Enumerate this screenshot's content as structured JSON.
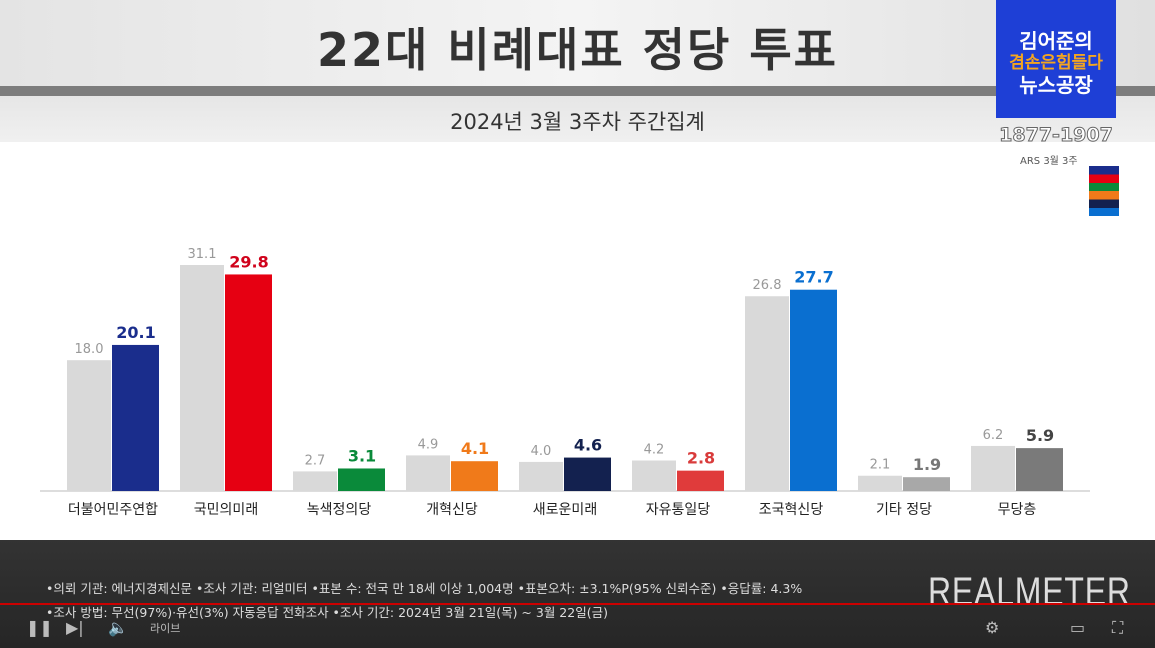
{
  "header": {
    "title": "22대 비례대표 정당 투표",
    "subtitle": "2024년 3월 3주차 주간집계"
  },
  "channel": {
    "logo_line1": "김어준의",
    "logo_line2": "겸손은힘들다",
    "logo_line3": "뉴스공장",
    "phone": "1877-1907",
    "flag_label": "ARS 3월 3주"
  },
  "chart_data": {
    "type": "bar",
    "categories": [
      "더불어민주연합",
      "국민의미래",
      "녹색정의당",
      "개혁신당",
      "새로운미래",
      "자유통일당",
      "조국혁신당",
      "기타 정당",
      "무당층"
    ],
    "series": [
      {
        "values": [
          18.0,
          31.1,
          2.7,
          4.9,
          4.0,
          4.2,
          26.8,
          2.1,
          6.2
        ],
        "color": "#d9d9d9"
      },
      {
        "values": [
          20.1,
          29.8,
          3.1,
          4.1,
          4.6,
          2.8,
          27.7,
          1.9,
          5.9
        ],
        "colors": [
          "#1a2d8c",
          "#e60012",
          "#0a8a3a",
          "#f07a1a",
          "#13214f",
          "#e03b3b",
          "#0a6fd0",
          "#a8a8a8",
          "#7a7a7a"
        ]
      }
    ],
    "label_colors": [
      "#1a2d8c",
      "#d0021b",
      "#0a8a3a",
      "#f07a1a",
      "#13214f",
      "#d93b3b",
      "#0a6fd0",
      "#777777",
      "#444444"
    ],
    "ylim": [
      0,
      31.1
    ],
    "grid": false
  },
  "footer": {
    "line1": "•의뢰 기관: 에너지경제신문  •조사 기관: 리얼미터 •표본 수: 전국 만 18세 이상 1,004명 •표본오차: ±3.1%P(95% 신뢰수준) •응답률: 4.3%",
    "line2": "•조사 방법: 무선(97%)·유선(3%) 자동응답 전화조사 •조사 기간: 2024년 3월 21일(목) ~ 3월 22일(금)",
    "brand": "REALMETER",
    "live": "라이브"
  }
}
